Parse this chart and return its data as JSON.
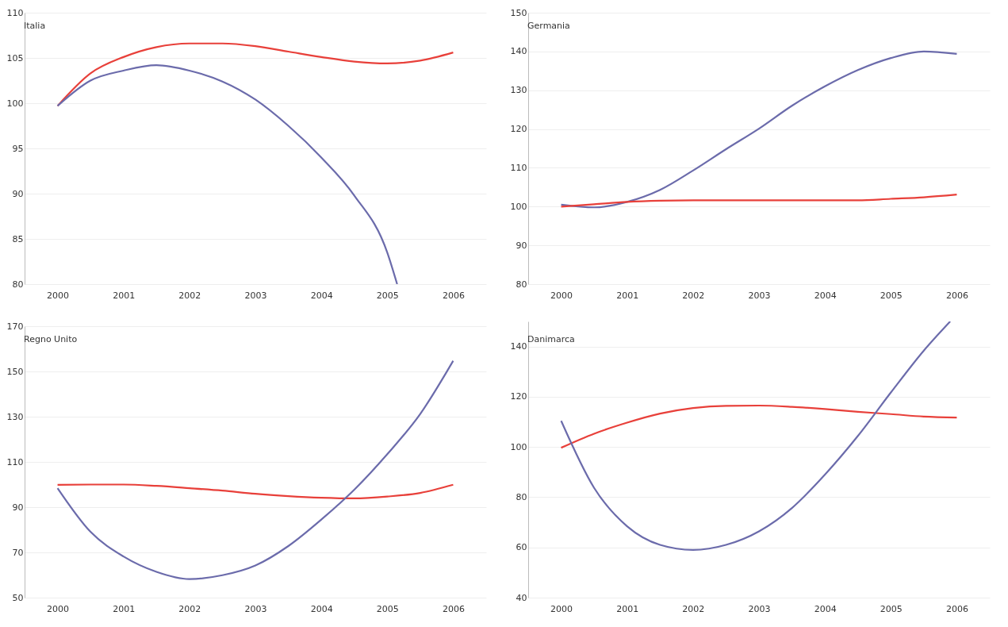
{
  "chart_data": [
    {
      "type": "line",
      "title": "Italia",
      "xlim": [
        1999.5,
        2006.5
      ],
      "xticks": [
        2000,
        2001,
        2002,
        2003,
        2004,
        2005,
        2006
      ],
      "ylim": [
        80,
        110
      ],
      "yticks": [
        80,
        85,
        90,
        95,
        100,
        105,
        110
      ],
      "grid": "y",
      "series": [
        {
          "color": "#e8403a",
          "x": [
            2000,
            2000.5,
            2001,
            2001.5,
            2002,
            2002.5,
            2003,
            2003.5,
            2004,
            2004.5,
            2005,
            2005.5,
            2006
          ],
          "values": [
            99.7,
            103.3,
            105.1,
            106.2,
            106.6,
            106.6,
            106.3,
            105.7,
            105.1,
            104.6,
            104.4,
            104.7,
            105.6
          ]
        },
        {
          "color": "#6b6bab",
          "x": [
            2000,
            2000.5,
            2001,
            2001.5,
            2002,
            2002.5,
            2003,
            2003.5,
            2004,
            2004.5,
            2005,
            2005.15
          ],
          "values": [
            99.7,
            102.5,
            103.6,
            104.2,
            103.6,
            102.4,
            100.4,
            97.5,
            94,
            89.8,
            83.5,
            80
          ]
        }
      ]
    },
    {
      "type": "line",
      "title": "Germania",
      "xlim": [
        1999.5,
        2006.5
      ],
      "xticks": [
        2000,
        2001,
        2002,
        2003,
        2004,
        2005,
        2006
      ],
      "ylim": [
        80,
        150
      ],
      "yticks": [
        80,
        90,
        100,
        110,
        120,
        130,
        140,
        150
      ],
      "grid": "y",
      "series": [
        {
          "color": "#6b6bab",
          "x": [
            2000,
            2000.5,
            2001,
            2001.5,
            2002,
            2002.5,
            2003,
            2003.5,
            2004,
            2004.5,
            2005,
            2005.5,
            2006
          ],
          "values": [
            100.5,
            99.8,
            101.2,
            104.3,
            109.3,
            114.8,
            120.1,
            126,
            131,
            135.2,
            138.3,
            140,
            139.4
          ]
        },
        {
          "color": "#e8403a",
          "x": [
            2000,
            2000.5,
            2001,
            2001.5,
            2002,
            2002.5,
            2003,
            2003.5,
            2004,
            2004.5,
            2005,
            2005.5,
            2006
          ],
          "values": [
            100,
            100.6,
            101.2,
            101.5,
            101.6,
            101.6,
            101.6,
            101.6,
            101.6,
            101.6,
            102,
            102.4,
            103.1
          ]
        }
      ]
    },
    {
      "type": "line",
      "title": "Regno Unito",
      "xlim": [
        1999.5,
        2006.5
      ],
      "xticks": [
        2000,
        2001,
        2002,
        2003,
        2004,
        2005,
        2006
      ],
      "ylim": [
        50,
        170
      ],
      "yticks": [
        50,
        70,
        90,
        110,
        130,
        150,
        170
      ],
      "grid": "y",
      "series": [
        {
          "color": "#e8403a",
          "x": [
            2000,
            2000.5,
            2001,
            2001.5,
            2002,
            2002.5,
            2003,
            2003.5,
            2004,
            2004.5,
            2005,
            2005.5,
            2006
          ],
          "values": [
            99.9,
            100,
            100,
            99.4,
            98.4,
            97.3,
            95.9,
            94.9,
            94.2,
            93.9,
            94.7,
            96.3,
            99.9
          ]
        },
        {
          "color": "#6b6bab",
          "x": [
            2000,
            2000.5,
            2001,
            2001.5,
            2002,
            2002.5,
            2003,
            2003.5,
            2004,
            2004.5,
            2005,
            2005.5,
            2006
          ],
          "values": [
            98.4,
            79.1,
            68.2,
            61.4,
            58.2,
            59.9,
            64.2,
            72.8,
            84.5,
            97.7,
            113.4,
            131.2,
            154.7
          ]
        }
      ]
    },
    {
      "type": "line",
      "title": "Danimarca",
      "xlim": [
        1999.5,
        2006.5
      ],
      "xticks": [
        2000,
        2001,
        2002,
        2003,
        2004,
        2005,
        2006
      ],
      "ylim": [
        40,
        150
      ],
      "yticks": [
        40,
        60,
        80,
        100,
        120,
        140
      ],
      "grid": "y",
      "series": [
        {
          "color": "#e8403a",
          "x": [
            2000,
            2000.5,
            2001,
            2001.5,
            2002,
            2002.5,
            2003,
            2003.5,
            2004,
            2004.5,
            2005,
            2005.5,
            2006
          ],
          "values": [
            99.7,
            105.3,
            109.7,
            113.3,
            115.5,
            116.4,
            116.5,
            116,
            115.1,
            114,
            113.1,
            112.1,
            111.7
          ]
        },
        {
          "color": "#6b6bab",
          "x": [
            2000,
            2000.5,
            2001,
            2001.5,
            2002,
            2002.5,
            2003,
            2003.5,
            2004,
            2004.5,
            2005,
            2005.5,
            2005.9
          ],
          "values": [
            110.4,
            83.7,
            68.4,
            61,
            59,
            61,
            66.4,
            75.7,
            89,
            104.4,
            121.7,
            138.4,
            150
          ]
        }
      ]
    }
  ]
}
